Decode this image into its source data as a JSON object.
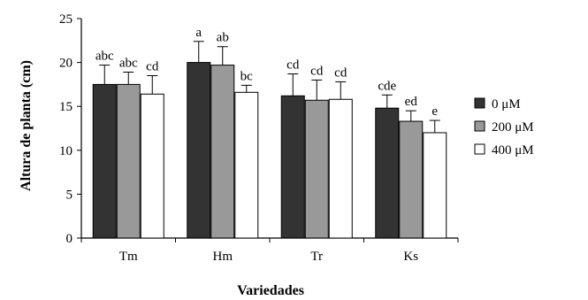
{
  "chart_data": {
    "type": "bar",
    "title": "",
    "xlabel": "Variedades",
    "ylabel": "Altura de planta (cm)",
    "ylim": [
      0,
      25
    ],
    "yticks": [
      0,
      5,
      10,
      15,
      20,
      25
    ],
    "grid": false,
    "legend_position": "right",
    "categories": [
      "Tm",
      "Hm",
      "Tr",
      "Ks"
    ],
    "series": [
      {
        "name": "0 μM",
        "color": "#333333",
        "values": [
          17.5,
          20.0,
          16.2,
          14.8
        ],
        "errors": [
          2.2,
          2.4,
          2.5,
          1.5
        ],
        "labels": [
          "abc",
          "a",
          "cd",
          "cde"
        ]
      },
      {
        "name": "200 μM",
        "color": "#999999",
        "values": [
          17.5,
          19.7,
          15.7,
          13.3
        ],
        "errors": [
          1.4,
          2.1,
          2.3,
          1.2
        ],
        "labels": [
          "abc",
          "ab",
          "cd",
          "ed"
        ]
      },
      {
        "name": "400 μM",
        "color": "#ffffff",
        "values": [
          16.4,
          16.6,
          15.8,
          12.0
        ],
        "errors": [
          2.1,
          0.8,
          2.0,
          1.4
        ],
        "labels": [
          "cd",
          "bc",
          "cd",
          "e"
        ]
      }
    ]
  }
}
